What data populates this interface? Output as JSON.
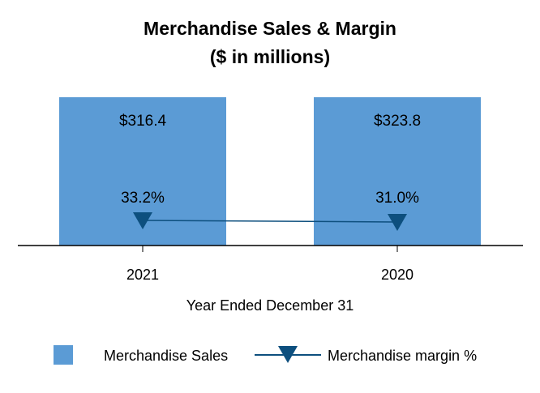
{
  "chart_data": {
    "type": "bar+line",
    "title": "Merchandise Sales & Margin",
    "subtitle": "($ in millions)",
    "xlabel": "Year Ended December 31",
    "categories": [
      "2021",
      "2020"
    ],
    "series": [
      {
        "name": "Merchandise Sales",
        "type": "bar",
        "values": [
          316.4,
          323.8
        ],
        "labels": [
          "$316.4",
          "$323.8"
        ],
        "color": "#5b9bd5"
      },
      {
        "name": "Merchandise margin %",
        "type": "line",
        "marker": "triangle-down",
        "values": [
          33.2,
          31.0
        ],
        "labels": [
          "33.2%",
          "31.0%"
        ],
        "color": "#0d4f7e"
      }
    ],
    "grid": false,
    "legend_placement": "bottom"
  }
}
